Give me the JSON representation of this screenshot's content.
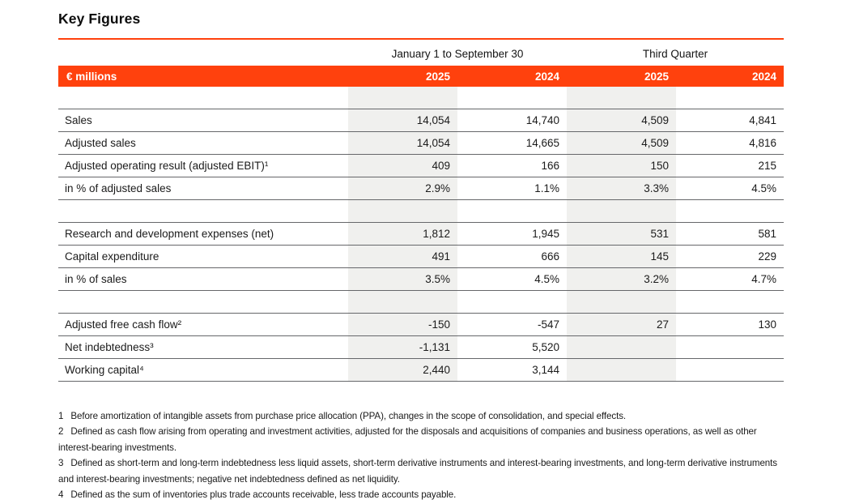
{
  "title": "Key Figures",
  "colors": {
    "accent": "#FF410D",
    "column_shade": "#F0F0EE"
  },
  "table": {
    "group_headers": [
      {
        "label": "January 1 to September 30"
      },
      {
        "label": "Third Quarter"
      }
    ],
    "unit_label": "€ millions",
    "year_headers": [
      "2025",
      "2024",
      "2025",
      "2024"
    ],
    "rows": [
      {
        "type": "spacer",
        "label": "",
        "values": [
          "",
          "",
          "",
          ""
        ]
      },
      {
        "type": "data",
        "label": "Sales",
        "values": [
          "14,054",
          "14,740",
          "4,509",
          "4,841"
        ]
      },
      {
        "type": "data",
        "label": "Adjusted sales",
        "values": [
          "14,054",
          "14,665",
          "4,509",
          "4,816"
        ]
      },
      {
        "type": "data",
        "label": "Adjusted operating result (adjusted EBIT)¹",
        "values": [
          "409",
          "166",
          "150",
          "215"
        ]
      },
      {
        "type": "data",
        "label": "in % of adjusted sales",
        "values": [
          "2.9%",
          "1.1%",
          "3.3%",
          "4.5%"
        ]
      },
      {
        "type": "spacer",
        "label": "",
        "values": [
          "",
          "",
          "",
          ""
        ]
      },
      {
        "type": "data",
        "label": "Research and development expenses (net)",
        "values": [
          "1,812",
          "1,945",
          "531",
          "581"
        ]
      },
      {
        "type": "data",
        "label": "Capital expenditure",
        "values": [
          "491",
          "666",
          "145",
          "229"
        ]
      },
      {
        "type": "data",
        "label": "in % of sales",
        "values": [
          "3.5%",
          "4.5%",
          "3.2%",
          "4.7%"
        ]
      },
      {
        "type": "spacer",
        "label": "",
        "values": [
          "",
          "",
          "",
          ""
        ]
      },
      {
        "type": "data",
        "label": "Adjusted free cash flow²",
        "values": [
          "-150",
          "-547",
          "27",
          "130"
        ]
      },
      {
        "type": "data",
        "label": "Net indebtedness³",
        "values": [
          "-1,131",
          "5,520",
          "",
          ""
        ]
      },
      {
        "type": "data",
        "label": "Working capital⁴",
        "values": [
          "2,440",
          "3,144",
          "",
          ""
        ]
      }
    ]
  },
  "footnotes": [
    {
      "num": "1",
      "text": "Before amortization of intangible assets from purchase price allocation (PPA), changes in the scope of consolidation, and special effects."
    },
    {
      "num": "2",
      "text": "Defined as cash flow arising from operating and investment activities, adjusted for the disposals and acquisitions of companies and business operations, as well as other interest-bearing investments."
    },
    {
      "num": "3",
      "text": "Defined as short-term and long-term indebtedness less liquid assets, short-term derivative instruments and interest-bearing investments, and long-term derivative instruments and interest-bearing investments; negative net indebtedness defined as net liquidity."
    },
    {
      "num": "4",
      "text": "Defined as the sum of inventories plus trade accounts receivable, less trade accounts payable."
    }
  ]
}
